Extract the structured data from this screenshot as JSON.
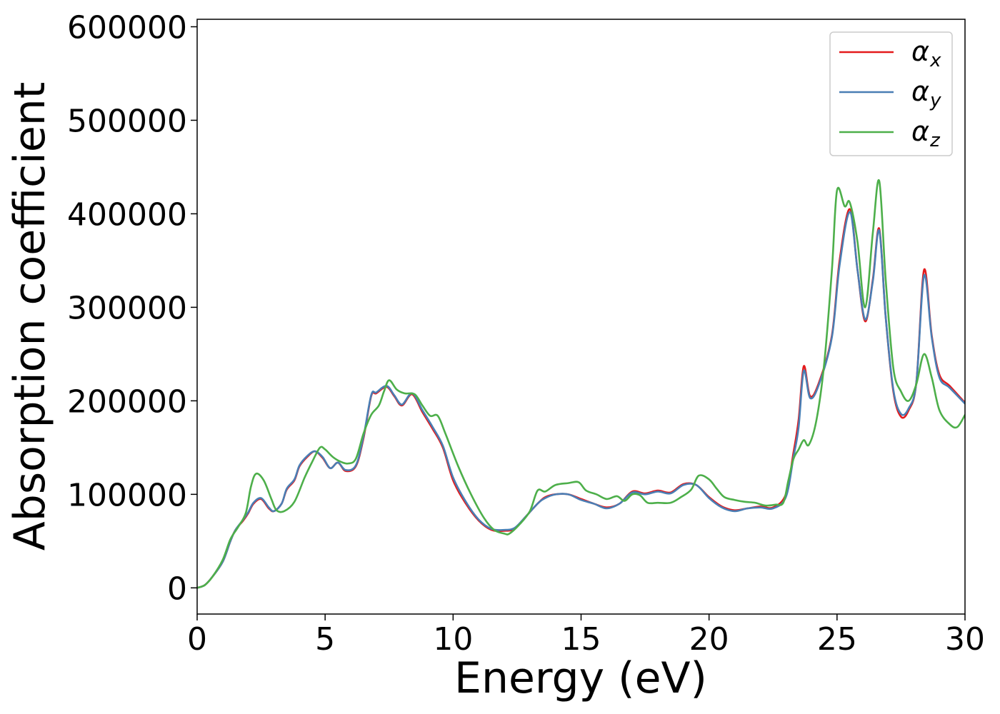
{
  "chart_data": {
    "type": "line",
    "title": "",
    "xlabel": "Energy (eV)",
    "ylabel": "Absorption coefficient",
    "xlim": [
      0,
      30
    ],
    "ylim": [
      -28000,
      608000
    ],
    "xticks": [
      0,
      5,
      10,
      15,
      20,
      25,
      30
    ],
    "yticks": [
      0,
      100000,
      200000,
      300000,
      400000,
      500000,
      600000
    ],
    "xtick_labels": [
      "0",
      "5",
      "10",
      "15",
      "20",
      "25",
      "30"
    ],
    "ytick_labels": [
      "0",
      "100000",
      "200000",
      "300000",
      "400000",
      "500000",
      "600000"
    ],
    "grid": false,
    "legend_position": "top-right",
    "series": [
      {
        "name": "αx",
        "legend_base": "α",
        "legend_sub": "x",
        "color": "#e41a1c",
        "points": [
          [
            0,
            0
          ],
          [
            0.3,
            3000
          ],
          [
            0.6,
            12000
          ],
          [
            1.0,
            28000
          ],
          [
            1.3,
            50000
          ],
          [
            1.5,
            62000
          ],
          [
            1.8,
            72000
          ],
          [
            2.0,
            80000
          ],
          [
            2.2,
            90000
          ],
          [
            2.5,
            95000
          ],
          [
            2.8,
            85000
          ],
          [
            3.0,
            82000
          ],
          [
            3.3,
            90000
          ],
          [
            3.5,
            105000
          ],
          [
            3.8,
            115000
          ],
          [
            4.0,
            130000
          ],
          [
            4.3,
            140000
          ],
          [
            4.6,
            146000
          ],
          [
            4.9,
            139000
          ],
          [
            5.2,
            128000
          ],
          [
            5.5,
            134000
          ],
          [
            5.8,
            125000
          ],
          [
            6.2,
            130000
          ],
          [
            6.5,
            160000
          ],
          [
            6.8,
            205000
          ],
          [
            7.0,
            208000
          ],
          [
            7.4,
            215000
          ],
          [
            7.7,
            205000
          ],
          [
            8.0,
            195000
          ],
          [
            8.4,
            207000
          ],
          [
            8.8,
            188000
          ],
          [
            9.2,
            170000
          ],
          [
            9.6,
            150000
          ],
          [
            10.0,
            115000
          ],
          [
            10.5,
            90000
          ],
          [
            11.0,
            72000
          ],
          [
            11.5,
            62000
          ],
          [
            12.0,
            61000
          ],
          [
            12.4,
            63000
          ],
          [
            12.8,
            75000
          ],
          [
            13.3,
            90000
          ],
          [
            13.6,
            97000
          ],
          [
            14.0,
            100000
          ],
          [
            14.5,
            100000
          ],
          [
            15.0,
            95000
          ],
          [
            15.5,
            90000
          ],
          [
            16.0,
            86000
          ],
          [
            16.5,
            90000
          ],
          [
            17.0,
            103000
          ],
          [
            17.5,
            101000
          ],
          [
            18.0,
            104000
          ],
          [
            18.5,
            102000
          ],
          [
            19.0,
            111000
          ],
          [
            19.5,
            110000
          ],
          [
            20.0,
            97000
          ],
          [
            20.5,
            87000
          ],
          [
            21.0,
            83000
          ],
          [
            21.5,
            85000
          ],
          [
            22.0,
            87000
          ],
          [
            22.5,
            86000
          ],
          [
            23.0,
            100000
          ],
          [
            23.3,
            145000
          ],
          [
            23.5,
            180000
          ],
          [
            23.7,
            237000
          ],
          [
            23.95,
            205000
          ],
          [
            24.3,
            220000
          ],
          [
            24.8,
            270000
          ],
          [
            25.1,
            350000
          ],
          [
            25.5,
            405000
          ],
          [
            25.8,
            340000
          ],
          [
            26.1,
            285000
          ],
          [
            26.4,
            330000
          ],
          [
            26.65,
            384000
          ],
          [
            26.9,
            290000
          ],
          [
            27.2,
            210000
          ],
          [
            27.5,
            183000
          ],
          [
            27.8,
            190000
          ],
          [
            28.1,
            220000
          ],
          [
            28.4,
            340000
          ],
          [
            28.7,
            270000
          ],
          [
            29.0,
            228000
          ],
          [
            29.4,
            216000
          ],
          [
            30.0,
            198000
          ]
        ]
      },
      {
        "name": "αy",
        "legend_base": "α",
        "legend_sub": "y",
        "color": "#4a7eb4",
        "points": [
          [
            0,
            0
          ],
          [
            0.3,
            3000
          ],
          [
            0.6,
            12000
          ],
          [
            1.0,
            28000
          ],
          [
            1.3,
            50000
          ],
          [
            1.5,
            62000
          ],
          [
            1.8,
            73000
          ],
          [
            2.0,
            81000
          ],
          [
            2.2,
            91000
          ],
          [
            2.5,
            96000
          ],
          [
            2.8,
            86000
          ],
          [
            3.0,
            82000
          ],
          [
            3.3,
            90000
          ],
          [
            3.5,
            106000
          ],
          [
            3.8,
            116000
          ],
          [
            4.0,
            131000
          ],
          [
            4.3,
            141000
          ],
          [
            4.6,
            146000
          ],
          [
            4.9,
            140000
          ],
          [
            5.2,
            128000
          ],
          [
            5.5,
            134000
          ],
          [
            5.8,
            126000
          ],
          [
            6.2,
            131000
          ],
          [
            6.5,
            162000
          ],
          [
            6.8,
            206000
          ],
          [
            7.0,
            209000
          ],
          [
            7.4,
            216000
          ],
          [
            7.7,
            206000
          ],
          [
            8.0,
            196000
          ],
          [
            8.4,
            208000
          ],
          [
            8.8,
            190000
          ],
          [
            9.2,
            172000
          ],
          [
            9.6,
            152000
          ],
          [
            10.0,
            118000
          ],
          [
            10.5,
            92000
          ],
          [
            11.0,
            73000
          ],
          [
            11.5,
            63000
          ],
          [
            12.0,
            62000
          ],
          [
            12.4,
            64000
          ],
          [
            12.8,
            75000
          ],
          [
            13.3,
            90000
          ],
          [
            13.6,
            96000
          ],
          [
            14.0,
            100000
          ],
          [
            14.5,
            100000
          ],
          [
            15.0,
            94000
          ],
          [
            15.5,
            90000
          ],
          [
            16.0,
            85000
          ],
          [
            16.5,
            90000
          ],
          [
            17.0,
            102000
          ],
          [
            17.5,
            100000
          ],
          [
            18.0,
            103000
          ],
          [
            18.5,
            101000
          ],
          [
            19.0,
            110000
          ],
          [
            19.5,
            110000
          ],
          [
            20.0,
            96000
          ],
          [
            20.5,
            86000
          ],
          [
            21.0,
            82000
          ],
          [
            21.5,
            85000
          ],
          [
            22.0,
            86000
          ],
          [
            22.5,
            85000
          ],
          [
            23.0,
            97000
          ],
          [
            23.3,
            140000
          ],
          [
            23.5,
            172000
          ],
          [
            23.7,
            232000
          ],
          [
            23.95,
            203000
          ],
          [
            24.3,
            218000
          ],
          [
            24.8,
            268000
          ],
          [
            25.1,
            345000
          ],
          [
            25.5,
            402000
          ],
          [
            25.8,
            340000
          ],
          [
            26.1,
            287000
          ],
          [
            26.4,
            328000
          ],
          [
            26.65,
            382000
          ],
          [
            26.9,
            290000
          ],
          [
            27.2,
            212000
          ],
          [
            27.5,
            186000
          ],
          [
            27.8,
            192000
          ],
          [
            28.1,
            220000
          ],
          [
            28.4,
            334000
          ],
          [
            28.7,
            268000
          ],
          [
            29.0,
            225000
          ],
          [
            29.4,
            214000
          ],
          [
            30.0,
            197000
          ]
        ]
      },
      {
        "name": "αz",
        "legend_base": "α",
        "legend_sub": "z",
        "color": "#4daf4a",
        "points": [
          [
            0,
            0
          ],
          [
            0.3,
            3000
          ],
          [
            0.6,
            12000
          ],
          [
            1.0,
            30000
          ],
          [
            1.3,
            52000
          ],
          [
            1.6,
            65000
          ],
          [
            1.9,
            80000
          ],
          [
            2.1,
            108000
          ],
          [
            2.3,
            122000
          ],
          [
            2.6,
            115000
          ],
          [
            2.9,
            95000
          ],
          [
            3.1,
            83000
          ],
          [
            3.4,
            82000
          ],
          [
            3.8,
            92000
          ],
          [
            4.2,
            118000
          ],
          [
            4.5,
            135000
          ],
          [
            4.8,
            150000
          ],
          [
            5.0,
            148000
          ],
          [
            5.3,
            140000
          ],
          [
            5.6,
            135000
          ],
          [
            5.9,
            133000
          ],
          [
            6.2,
            138000
          ],
          [
            6.5,
            165000
          ],
          [
            6.8,
            185000
          ],
          [
            7.1,
            195000
          ],
          [
            7.3,
            210000
          ],
          [
            7.5,
            222000
          ],
          [
            7.8,
            212000
          ],
          [
            8.1,
            208000
          ],
          [
            8.5,
            207000
          ],
          [
            8.8,
            195000
          ],
          [
            9.1,
            184000
          ],
          [
            9.4,
            184000
          ],
          [
            9.7,
            165000
          ],
          [
            10.2,
            130000
          ],
          [
            10.7,
            100000
          ],
          [
            11.2,
            75000
          ],
          [
            11.6,
            62000
          ],
          [
            12.0,
            58000
          ],
          [
            12.2,
            58000
          ],
          [
            12.6,
            68000
          ],
          [
            13.0,
            82000
          ],
          [
            13.3,
            104000
          ],
          [
            13.6,
            103000
          ],
          [
            14.0,
            110000
          ],
          [
            14.5,
            112000
          ],
          [
            14.9,
            113000
          ],
          [
            15.2,
            104000
          ],
          [
            15.6,
            100000
          ],
          [
            16.0,
            95000
          ],
          [
            16.4,
            98000
          ],
          [
            16.7,
            93000
          ],
          [
            17.0,
            100000
          ],
          [
            17.3,
            99000
          ],
          [
            17.6,
            91000
          ],
          [
            18.0,
            91000
          ],
          [
            18.5,
            91000
          ],
          [
            18.9,
            97000
          ],
          [
            19.3,
            105000
          ],
          [
            19.6,
            120000
          ],
          [
            20.0,
            116000
          ],
          [
            20.3,
            106000
          ],
          [
            20.6,
            97000
          ],
          [
            21.0,
            94000
          ],
          [
            21.4,
            92000
          ],
          [
            21.8,
            91000
          ],
          [
            22.2,
            88000
          ],
          [
            22.6,
            89000
          ],
          [
            22.9,
            91000
          ],
          [
            23.1,
            115000
          ],
          [
            23.3,
            138000
          ],
          [
            23.5,
            148000
          ],
          [
            23.7,
            158000
          ],
          [
            23.9,
            153000
          ],
          [
            24.2,
            180000
          ],
          [
            24.5,
            240000
          ],
          [
            24.8,
            340000
          ],
          [
            25.0,
            425000
          ],
          [
            25.3,
            408000
          ],
          [
            25.5,
            412000
          ],
          [
            25.8,
            370000
          ],
          [
            26.1,
            300000
          ],
          [
            26.4,
            380000
          ],
          [
            26.65,
            435000
          ],
          [
            26.9,
            330000
          ],
          [
            27.2,
            235000
          ],
          [
            27.5,
            210000
          ],
          [
            27.8,
            200000
          ],
          [
            28.1,
            218000
          ],
          [
            28.4,
            250000
          ],
          [
            28.7,
            225000
          ],
          [
            29.0,
            190000
          ],
          [
            29.4,
            175000
          ],
          [
            29.7,
            172000
          ],
          [
            30.0,
            185000
          ]
        ]
      }
    ]
  }
}
